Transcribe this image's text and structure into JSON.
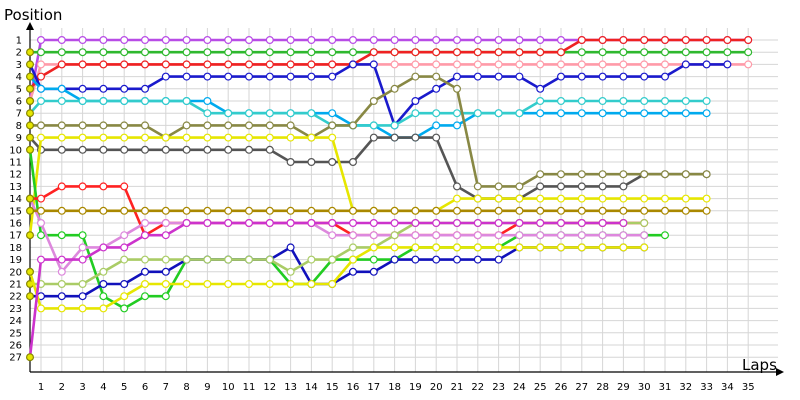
{
  "chart_data": {
    "type": "line",
    "title": "",
    "xlabel": "Laps",
    "ylabel": "Position",
    "xlim": [
      0,
      35
    ],
    "ylim": [
      1,
      27
    ],
    "y_inverted": true,
    "x_ticks": [
      1,
      2,
      3,
      4,
      5,
      6,
      7,
      8,
      9,
      10,
      11,
      12,
      13,
      14,
      15,
      16,
      17,
      18,
      19,
      20,
      21,
      22,
      23,
      24,
      25,
      26,
      27,
      28,
      29,
      30,
      31,
      32,
      33,
      34,
      35
    ],
    "y_ticks": [
      1,
      2,
      3,
      4,
      5,
      6,
      7,
      8,
      9,
      10,
      11,
      12,
      13,
      14,
      15,
      16,
      17,
      18,
      19,
      20,
      21,
      22,
      23,
      24,
      25,
      26,
      27
    ],
    "grid": true,
    "legend": "none",
    "series": [
      {
        "color": "#b84ce6",
        "values": [
          6,
          1,
          1,
          1,
          1,
          1,
          1,
          1,
          1,
          1,
          1,
          1,
          1,
          1,
          1,
          1,
          1,
          1,
          1,
          1,
          1,
          1,
          1,
          1,
          1,
          1,
          1,
          1,
          1,
          1,
          1,
          1,
          1,
          1,
          1,
          1
        ]
      },
      {
        "color": "#2fb82f",
        "values": [
          2,
          2,
          2,
          2,
          2,
          2,
          2,
          2,
          2,
          2,
          2,
          2,
          2,
          2,
          2,
          2,
          2,
          2,
          2,
          2,
          2,
          2,
          2,
          2,
          2,
          2,
          2,
          2,
          2,
          2,
          2,
          2,
          2,
          2,
          2,
          2
        ]
      },
      {
        "color": "#ff9aa8",
        "values": [
          6,
          3,
          3,
          3,
          3,
          3,
          3,
          3,
          3,
          3,
          3,
          3,
          3,
          3,
          3,
          3,
          3,
          3,
          3,
          3,
          3,
          3,
          3,
          3,
          3,
          3,
          3,
          3,
          3,
          3,
          3,
          3,
          3,
          3,
          3,
          3
        ]
      },
      {
        "color": "#ee2222",
        "values": [
          5,
          4,
          3,
          3,
          3,
          3,
          3,
          3,
          3,
          3,
          3,
          3,
          3,
          3,
          3,
          3,
          3,
          2,
          2,
          2,
          2,
          2,
          2,
          2,
          2,
          2,
          2,
          1,
          1,
          1,
          1,
          1,
          1,
          1,
          1,
          1
        ]
      },
      {
        "color": "#1a1acc",
        "values": [
          3,
          5,
          5,
          5,
          5,
          5,
          5,
          4,
          4,
          4,
          4,
          4,
          4,
          4,
          4,
          4,
          3,
          3,
          8,
          6,
          5,
          4,
          4,
          4,
          4,
          5,
          4,
          4,
          4,
          4,
          4,
          4,
          3,
          3,
          3
        ]
      },
      {
        "color": "#00aaee",
        "values": [
          4,
          5,
          5,
          6,
          6,
          6,
          6,
          6,
          6,
          6,
          7,
          7,
          7,
          7,
          7,
          7,
          8,
          8,
          9,
          9,
          8,
          8,
          7,
          7,
          7,
          7,
          7,
          7,
          7,
          7,
          7,
          7,
          7,
          7
        ]
      },
      {
        "color": "#33cccc",
        "values": [
          7,
          6,
          6,
          6,
          6,
          6,
          6,
          6,
          6,
          7,
          7,
          7,
          7,
          7,
          7,
          8,
          8,
          8,
          8,
          7,
          7,
          7,
          7,
          7,
          7,
          6,
          6,
          6,
          6,
          6,
          6,
          6,
          6,
          6
        ]
      },
      {
        "color": "#555555",
        "values": [
          9,
          10,
          10,
          10,
          10,
          10,
          10,
          10,
          10,
          10,
          10,
          10,
          10,
          11,
          11,
          11,
          11,
          9,
          9,
          9,
          9,
          13,
          14,
          14,
          14,
          13,
          13,
          13,
          13,
          13,
          12,
          12,
          12,
          12
        ]
      },
      {
        "color": "#888844",
        "values": [
          8,
          8,
          8,
          8,
          8,
          8,
          8,
          9,
          8,
          8,
          8,
          8,
          8,
          8,
          9,
          8,
          8,
          6,
          5,
          4,
          4,
          5,
          13,
          13,
          13,
          12,
          12,
          12,
          12,
          12,
          12,
          12,
          12,
          12
        ]
      },
      {
        "color": "#e6e600",
        "values": [
          17,
          9,
          9,
          9,
          9,
          9,
          9,
          9,
          9,
          9,
          9,
          9,
          9,
          9,
          9,
          9,
          15,
          15,
          15,
          15,
          15,
          14,
          14,
          14,
          14,
          14,
          14,
          14,
          14,
          14,
          14,
          14,
          14,
          14
        ]
      },
      {
        "color": "#22cc22",
        "values": [
          10,
          17,
          17,
          17,
          22,
          23,
          22,
          22,
          19,
          19,
          19,
          19,
          19,
          21,
          21,
          19,
          19,
          19,
          19,
          18,
          18,
          18,
          18,
          18,
          17,
          17,
          17,
          17,
          17,
          17,
          17,
          17
        ]
      },
      {
        "color": "#1111bb",
        "values": [
          22,
          22,
          22,
          22,
          21,
          21,
          20,
          20,
          19,
          19,
          19,
          19,
          19,
          18,
          21,
          21,
          20,
          20,
          19,
          19,
          19,
          19,
          19,
          19,
          18,
          18,
          18,
          18,
          18,
          18,
          18
        ]
      },
      {
        "color": "#ff2222",
        "values": [
          14,
          14,
          13,
          13,
          13,
          13,
          17,
          16,
          16,
          16,
          16,
          16,
          16,
          16,
          16,
          16,
          17,
          17,
          17,
          17,
          17,
          17,
          17,
          17,
          16,
          16,
          16,
          16,
          16,
          16,
          16
        ]
      },
      {
        "color": "#dd88dd",
        "values": [
          14,
          16,
          20,
          18,
          18,
          17,
          16,
          16,
          16,
          16,
          16,
          16,
          16,
          16,
          16,
          17,
          17,
          17,
          17,
          17,
          17,
          17,
          17,
          17,
          17,
          17,
          17,
          17,
          17,
          17,
          17
        ]
      },
      {
        "color": "#aacc66",
        "values": [
          21,
          21,
          21,
          21,
          20,
          19,
          19,
          19,
          19,
          19,
          19,
          19,
          19,
          20,
          19,
          19,
          18,
          18,
          17,
          16,
          16,
          16,
          16,
          16,
          16,
          16,
          16,
          16,
          16,
          16,
          16
        ]
      },
      {
        "color": "#e6e600",
        "values": [
          20,
          23,
          23,
          23,
          23,
          22,
          21,
          21,
          21,
          21,
          21,
          21,
          21,
          21,
          21,
          21,
          19,
          18,
          18,
          18,
          18,
          18,
          18,
          18,
          18,
          18,
          18,
          18,
          18,
          18,
          18
        ]
      },
      {
        "color": "#aa8800",
        "values": [
          15,
          15,
          15,
          15,
          15,
          15,
          15,
          15,
          15,
          15,
          15,
          15,
          15,
          15,
          15,
          15,
          15,
          15,
          15,
          15,
          15,
          15,
          15,
          15,
          15,
          15,
          15,
          15,
          15,
          15,
          15,
          15,
          15,
          15
        ]
      },
      {
        "color": "#cc33cc",
        "values": [
          27,
          19,
          19,
          19,
          18,
          18,
          17,
          17,
          16,
          16,
          16,
          16,
          16,
          16,
          16,
          16,
          16,
          16,
          16,
          16,
          16,
          16,
          16,
          16,
          16,
          16,
          16,
          16,
          16,
          16
        ]
      }
    ]
  }
}
